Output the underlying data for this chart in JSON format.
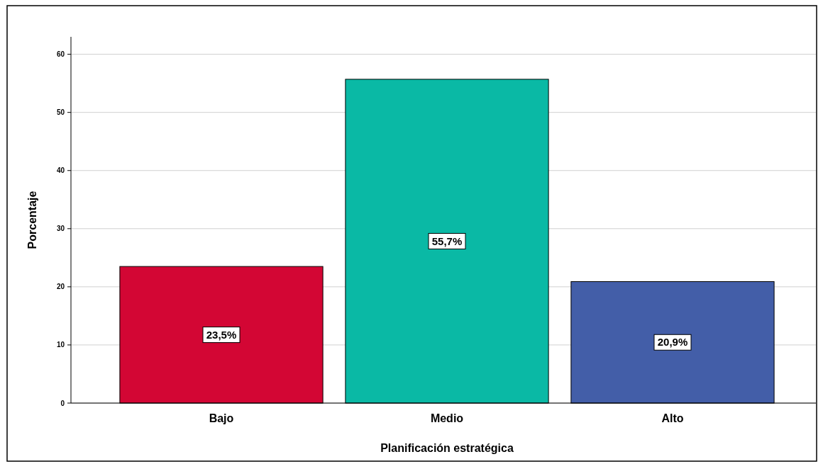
{
  "chart_data": {
    "type": "bar",
    "xlabel": "Planificación estratégica",
    "ylabel": "Porcentaje",
    "categories": [
      "Bajo",
      "Medio",
      "Alto"
    ],
    "values": [
      23.5,
      55.7,
      20.9
    ],
    "colors": [
      "#d30634",
      "#0ab9a5",
      "#435ea8"
    ],
    "value_labels": [
      "23,5%",
      "55,7%",
      "20,9%"
    ],
    "ylim": [
      0,
      63
    ],
    "yticks": [
      0,
      10,
      20,
      30,
      40,
      50,
      60
    ],
    "grid": "y"
  }
}
